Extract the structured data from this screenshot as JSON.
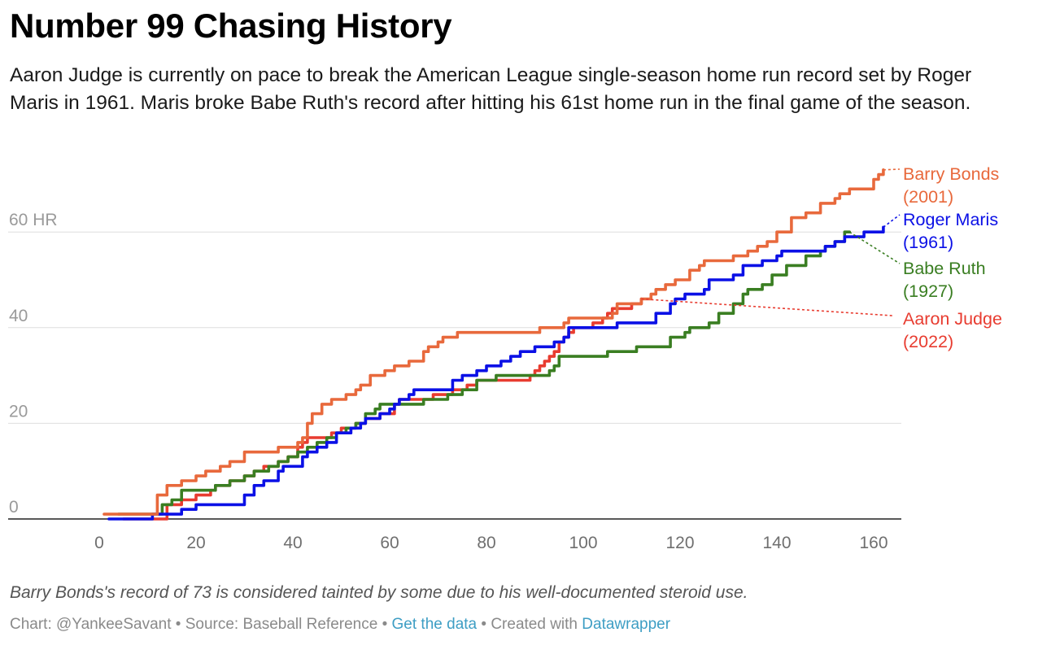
{
  "title": "Number 99 Chasing History",
  "subtitle": "Aaron Judge is currently on pace to break the American League single-season home run record set by Roger Maris in 1961. Maris broke Babe Ruth's record after hitting his 61st home run in the final game of the season.",
  "notes": "Barry Bonds's record of 73 is considered tainted by some due to his well-documented steroid use.",
  "footer": {
    "chart_by": "Chart: @YankeeSavant",
    "sep1": " • ",
    "source": "Source: Baseball Reference",
    "sep2": " • ",
    "get_data": "Get the data",
    "sep3": " • ",
    "created_with": "Created with ",
    "datawrapper": "Datawrapper"
  },
  "chart_data": {
    "type": "line",
    "xlabel": "",
    "ylabel": "",
    "xlim": [
      -20,
      165
    ],
    "ylim": [
      0,
      73
    ],
    "x_ticks": [
      {
        "value": 0,
        "label": "0"
      },
      {
        "value": 20,
        "label": "20"
      },
      {
        "value": 40,
        "label": "40"
      },
      {
        "value": 60,
        "label": "60"
      },
      {
        "value": 80,
        "label": "80"
      },
      {
        "value": 100,
        "label": "100"
      },
      {
        "value": 120,
        "label": "120"
      },
      {
        "value": 140,
        "label": "140"
      },
      {
        "value": 160,
        "label": "160"
      }
    ],
    "y_ticks": [
      {
        "value": 0,
        "label": "0"
      },
      {
        "value": 20,
        "label": "20"
      },
      {
        "value": 40,
        "label": "40"
      },
      {
        "value": 60,
        "label": "60 HR"
      }
    ],
    "grid": true,
    "legend": "direct labels at right",
    "series": [
      {
        "name": "Barry Bonds (2001)",
        "color": "#e8693c",
        "label_lines": [
          "Barry Bonds",
          "(2001)"
        ],
        "points": [
          [
            1,
            1
          ],
          [
            5,
            1
          ],
          [
            9,
            1
          ],
          [
            12,
            5
          ],
          [
            14,
            7
          ],
          [
            16,
            7
          ],
          [
            17,
            8
          ],
          [
            20,
            9
          ],
          [
            22,
            10
          ],
          [
            24,
            10
          ],
          [
            25,
            11
          ],
          [
            27,
            12
          ],
          [
            28,
            12
          ],
          [
            30,
            14
          ],
          [
            32,
            14
          ],
          [
            36,
            14
          ],
          [
            37,
            15
          ],
          [
            40,
            15
          ],
          [
            41,
            16
          ],
          [
            42,
            17
          ],
          [
            43,
            20
          ],
          [
            44,
            22
          ],
          [
            46,
            24
          ],
          [
            48,
            25
          ],
          [
            50,
            25
          ],
          [
            51,
            26
          ],
          [
            53,
            27
          ],
          [
            54,
            28
          ],
          [
            56,
            30
          ],
          [
            58,
            30
          ],
          [
            59,
            31
          ],
          [
            61,
            32
          ],
          [
            63,
            32
          ],
          [
            64,
            33
          ],
          [
            66,
            33
          ],
          [
            67,
            35
          ],
          [
            68,
            36
          ],
          [
            70,
            37
          ],
          [
            71,
            38
          ],
          [
            73,
            38
          ],
          [
            74,
            39
          ],
          [
            90,
            39
          ],
          [
            91,
            40
          ],
          [
            95,
            40
          ],
          [
            96,
            41
          ],
          [
            97,
            42
          ],
          [
            105,
            42
          ],
          [
            106,
            43
          ],
          [
            107,
            45
          ],
          [
            111,
            45
          ],
          [
            112,
            46
          ],
          [
            114,
            47
          ],
          [
            115,
            48
          ],
          [
            117,
            49
          ],
          [
            118,
            49
          ],
          [
            119,
            50
          ],
          [
            122,
            52
          ],
          [
            124,
            53
          ],
          [
            125,
            54
          ],
          [
            130,
            54
          ],
          [
            131,
            55
          ],
          [
            134,
            56
          ],
          [
            135,
            56
          ],
          [
            136,
            57
          ],
          [
            138,
            58
          ],
          [
            140,
            60
          ],
          [
            142,
            60
          ],
          [
            143,
            63
          ],
          [
            146,
            64
          ],
          [
            148,
            64
          ],
          [
            149,
            66
          ],
          [
            152,
            67
          ],
          [
            153,
            68
          ],
          [
            155,
            69
          ],
          [
            158,
            69
          ],
          [
            160,
            71
          ],
          [
            161,
            72
          ],
          [
            162,
            73
          ]
        ]
      },
      {
        "name": "Roger Maris (1961)",
        "color": "#0b10e6",
        "label_lines": [
          "Roger Maris",
          "(1961)"
        ],
        "points": [
          [
            2,
            0
          ],
          [
            10,
            0
          ],
          [
            11,
            1
          ],
          [
            16,
            1
          ],
          [
            17,
            2
          ],
          [
            19,
            2
          ],
          [
            20,
            3
          ],
          [
            28,
            3
          ],
          [
            30,
            5
          ],
          [
            32,
            7
          ],
          [
            34,
            8
          ],
          [
            36,
            8
          ],
          [
            37,
            10
          ],
          [
            38,
            11
          ],
          [
            40,
            11
          ],
          [
            42,
            13
          ],
          [
            43,
            14
          ],
          [
            45,
            15
          ],
          [
            47,
            16
          ],
          [
            49,
            18
          ],
          [
            51,
            18
          ],
          [
            52,
            19
          ],
          [
            54,
            20
          ],
          [
            55,
            21
          ],
          [
            58,
            22
          ],
          [
            60,
            23
          ],
          [
            61,
            24
          ],
          [
            62,
            25
          ],
          [
            64,
            26
          ],
          [
            65,
            27
          ],
          [
            72,
            27
          ],
          [
            73,
            29
          ],
          [
            75,
            30
          ],
          [
            78,
            31
          ],
          [
            80,
            32
          ],
          [
            83,
            33
          ],
          [
            85,
            34
          ],
          [
            87,
            35
          ],
          [
            90,
            36
          ],
          [
            93,
            36
          ],
          [
            94,
            37
          ],
          [
            96,
            38
          ],
          [
            97,
            40
          ],
          [
            106,
            40
          ],
          [
            107,
            41
          ],
          [
            113,
            41
          ],
          [
            115,
            43
          ],
          [
            118,
            45
          ],
          [
            119,
            46
          ],
          [
            121,
            47
          ],
          [
            125,
            48
          ],
          [
            126,
            50
          ],
          [
            130,
            50
          ],
          [
            131,
            51
          ],
          [
            133,
            53
          ],
          [
            137,
            54
          ],
          [
            140,
            55
          ],
          [
            141,
            56
          ],
          [
            148,
            56
          ],
          [
            150,
            57
          ],
          [
            152,
            58
          ],
          [
            154,
            59
          ],
          [
            157,
            59
          ],
          [
            158,
            60
          ],
          [
            162,
            61
          ]
        ]
      },
      {
        "name": "Babe Ruth (1927)",
        "color": "#3a7e22",
        "label_lines": [
          "Babe Ruth",
          "(1927)"
        ],
        "points": [
          [
            4,
            1
          ],
          [
            11,
            1
          ],
          [
            13,
            3
          ],
          [
            15,
            4
          ],
          [
            17,
            6
          ],
          [
            22,
            6
          ],
          [
            24,
            7
          ],
          [
            26,
            7
          ],
          [
            27,
            8
          ],
          [
            30,
            9
          ],
          [
            32,
            10
          ],
          [
            34,
            10
          ],
          [
            35,
            11
          ],
          [
            37,
            12
          ],
          [
            39,
            13
          ],
          [
            41,
            14
          ],
          [
            43,
            15
          ],
          [
            45,
            16
          ],
          [
            47,
            17
          ],
          [
            49,
            18
          ],
          [
            51,
            19
          ],
          [
            53,
            20
          ],
          [
            55,
            22
          ],
          [
            57,
            23
          ],
          [
            58,
            24
          ],
          [
            66,
            24
          ],
          [
            67,
            25
          ],
          [
            72,
            26
          ],
          [
            74,
            26
          ],
          [
            75,
            27
          ],
          [
            78,
            29
          ],
          [
            81,
            29
          ],
          [
            82,
            30
          ],
          [
            92,
            30
          ],
          [
            93,
            31
          ],
          [
            94,
            32
          ],
          [
            95,
            34
          ],
          [
            104,
            34
          ],
          [
            105,
            35
          ],
          [
            110,
            35
          ],
          [
            111,
            36
          ],
          [
            117,
            36
          ],
          [
            118,
            38
          ],
          [
            121,
            39
          ],
          [
            122,
            40
          ],
          [
            126,
            41
          ],
          [
            128,
            43
          ],
          [
            131,
            45
          ],
          [
            133,
            47
          ],
          [
            134,
            48
          ],
          [
            137,
            49
          ],
          [
            139,
            51
          ],
          [
            142,
            53
          ],
          [
            145,
            53
          ],
          [
            146,
            55
          ],
          [
            149,
            56
          ],
          [
            150,
            57
          ],
          [
            152,
            58
          ],
          [
            154,
            60
          ],
          [
            155,
            60
          ]
        ]
      },
      {
        "name": "Aaron Judge (2022)",
        "color": "#e83c30",
        "label_lines": [
          "Aaron Judge",
          "(2022)"
        ],
        "points": [
          [
            5,
            0
          ],
          [
            12,
            0
          ],
          [
            14,
            3
          ],
          [
            16,
            3
          ],
          [
            17,
            4
          ],
          [
            20,
            5
          ],
          [
            23,
            6
          ],
          [
            24,
            7
          ],
          [
            26,
            7
          ],
          [
            27,
            8
          ],
          [
            30,
            9
          ],
          [
            32,
            10
          ],
          [
            34,
            11
          ],
          [
            36,
            11
          ],
          [
            37,
            12
          ],
          [
            39,
            13
          ],
          [
            41,
            15
          ],
          [
            42,
            16
          ],
          [
            43,
            17
          ],
          [
            47,
            17
          ],
          [
            48,
            18
          ],
          [
            50,
            19
          ],
          [
            53,
            20
          ],
          [
            55,
            21
          ],
          [
            58,
            22
          ],
          [
            61,
            24
          ],
          [
            62,
            25
          ],
          [
            68,
            25
          ],
          [
            69,
            26
          ],
          [
            72,
            26
          ],
          [
            73,
            27
          ],
          [
            76,
            28
          ],
          [
            78,
            29
          ],
          [
            87,
            29
          ],
          [
            89,
            30
          ],
          [
            90,
            31
          ],
          [
            91,
            32
          ],
          [
            92,
            33
          ],
          [
            93,
            34
          ],
          [
            94,
            35
          ],
          [
            95,
            37
          ],
          [
            96,
            38
          ],
          [
            97,
            39
          ],
          [
            98,
            40
          ],
          [
            100,
            40
          ],
          [
            102,
            41
          ],
          [
            104,
            42
          ],
          [
            105,
            43
          ],
          [
            106,
            44
          ],
          [
            109,
            44
          ],
          [
            110,
            45
          ],
          [
            111,
            45
          ],
          [
            112,
            46
          ]
        ],
        "projection_to": [
          165,
          42.5
        ]
      }
    ]
  }
}
